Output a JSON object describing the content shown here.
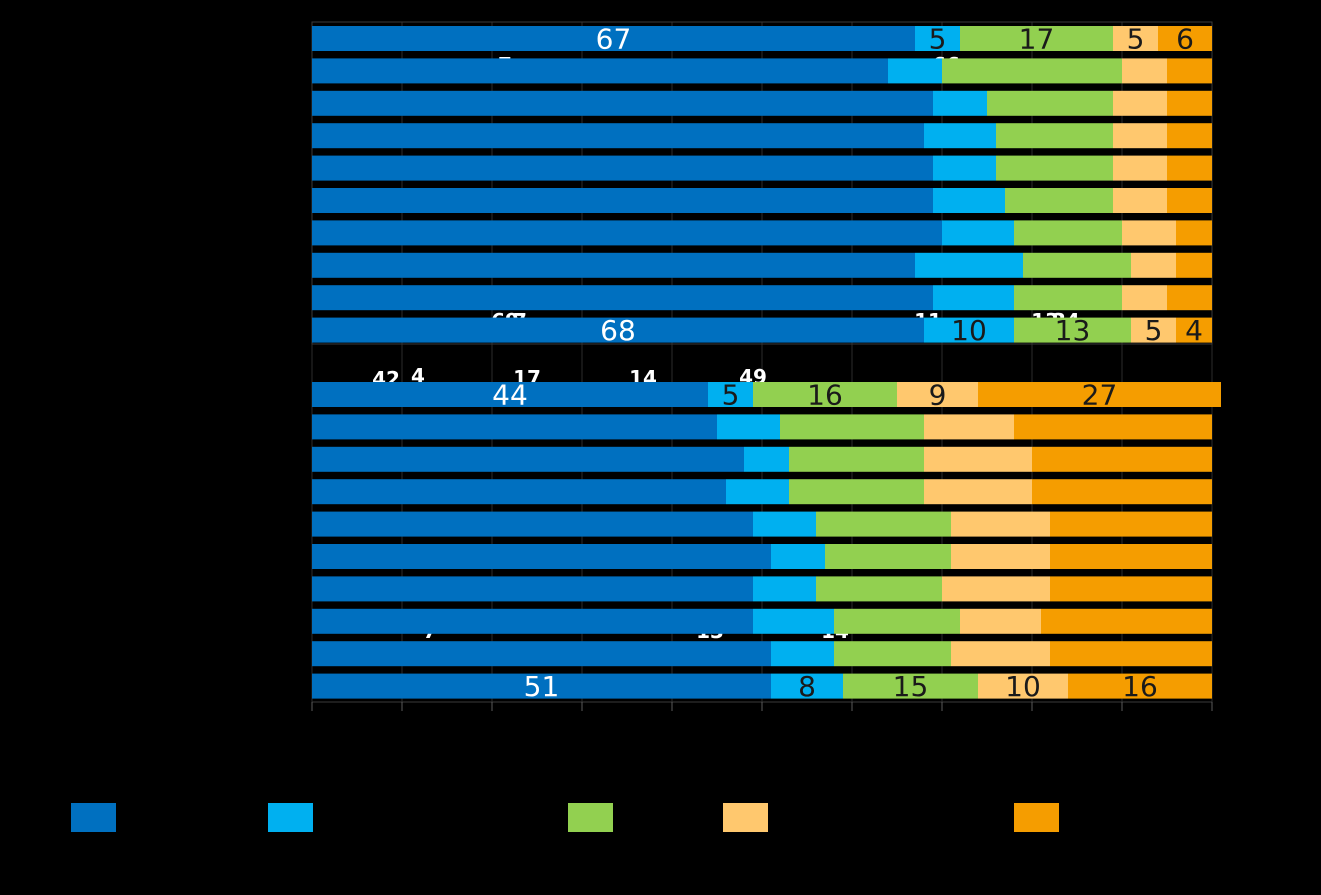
{
  "chart_data": {
    "type": "bar",
    "orientation": "horizontal",
    "stacked": true,
    "xlim": [
      0,
      100
    ],
    "grid": true,
    "legend_position": "bottom",
    "series_colors": [
      "#0070C0",
      "#00B0F0",
      "#92D050",
      "#FFC86E",
      "#F59D00"
    ],
    "groups": [
      {
        "rows": [
          [
            67,
            5,
            17,
            5,
            6
          ],
          [
            64,
            6,
            20,
            5,
            5
          ],
          [
            69,
            6,
            14,
            6,
            5
          ],
          [
            68,
            8,
            13,
            6,
            5
          ],
          [
            69,
            7,
            13,
            6,
            5
          ],
          [
            69,
            8,
            12,
            6,
            5
          ],
          [
            70,
            8,
            12,
            6,
            4
          ],
          [
            67,
            12,
            12,
            5,
            4
          ],
          [
            69,
            9,
            12,
            5,
            5
          ],
          [
            68,
            10,
            13,
            5,
            4
          ]
        ],
        "labeled_rows": [
          0,
          9
        ]
      },
      {
        "rows": [
          [
            44,
            5,
            16,
            9,
            27
          ],
          [
            45,
            7,
            16,
            10,
            22
          ],
          [
            48,
            5,
            15,
            12,
            20
          ],
          [
            46,
            7,
            15,
            12,
            20
          ],
          [
            49,
            7,
            15,
            11,
            18
          ],
          [
            51,
            6,
            14,
            11,
            18
          ],
          [
            49,
            7,
            14,
            12,
            18
          ],
          [
            49,
            9,
            14,
            9,
            19
          ],
          [
            51,
            7,
            13,
            11,
            18
          ],
          [
            51,
            8,
            15,
            10,
            16
          ]
        ],
        "labeled_rows": [
          0,
          9
        ]
      }
    ],
    "stray_labels": [
      {
        "text": "7",
        "group": 0,
        "row": 1
      },
      {
        "text": "66",
        "group": 0,
        "row": 9
      },
      {
        "text": "69",
        "group": 0,
        "row": 9
      },
      {
        "text": "7",
        "group": 0,
        "row": 9
      },
      {
        "text": "11",
        "group": 0,
        "row": 9
      },
      {
        "text": "13",
        "group": 0,
        "row": 9
      },
      {
        "text": "34",
        "group": 1,
        "row": 0
      },
      {
        "text": "42",
        "group": 1,
        "row": 0
      },
      {
        "text": "4",
        "group": 1,
        "row": 0
      },
      {
        "text": "17",
        "group": 1,
        "row": 0
      },
      {
        "text": "14",
        "group": 1,
        "row": 0
      },
      {
        "text": "49",
        "group": 1,
        "row": 7
      },
      {
        "text": "7",
        "group": 1,
        "row": 7
      },
      {
        "text": "13",
        "group": 1,
        "row": 7
      },
      {
        "text": "14",
        "group": 1,
        "row": 7
      }
    ]
  }
}
